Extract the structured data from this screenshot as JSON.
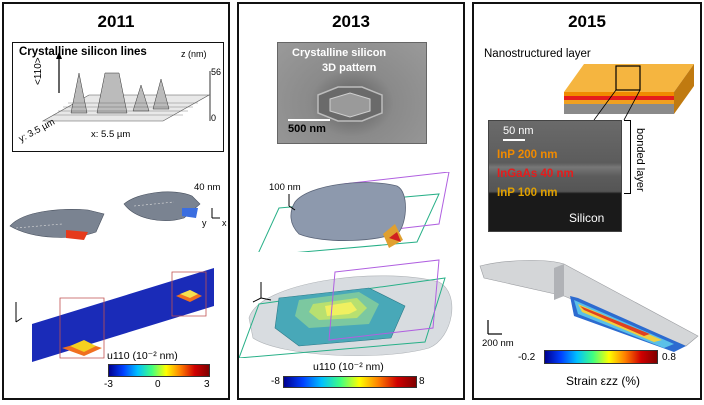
{
  "panels": [
    {
      "year": "2011",
      "inset_title": "Crystalline silicon lines",
      "z_axis_label": "z (nm)",
      "z_max": "56",
      "z_min": "0",
      "direction_label": "<110>",
      "y_label": "y: 3.5 µm",
      "x_label": "x: 5.5 µm",
      "scale_label": "40 nm",
      "axis_y": "y",
      "axis_x": "x",
      "colorbar_label": "u110 (10⁻² nm)",
      "cb_min": "-3",
      "cb_mid": "0",
      "cb_max": "3"
    },
    {
      "year": "2013",
      "sem_text_1": "Crystalline silicon",
      "sem_text_2": "3D pattern",
      "sem_scale": "500 nm",
      "scale_label": "100 nm",
      "colorbar_label": "u110 (10⁻² nm)",
      "cb_min": "-8",
      "cb_max": "8"
    },
    {
      "year": "2015",
      "layer_label": "Nanostructured layer",
      "tem_scale": "50 nm",
      "layers": [
        {
          "label": "InP 200 nm",
          "color": "#f08a00"
        },
        {
          "label": "InGaAs  40 nm",
          "color": "#e51c1c"
        },
        {
          "label": "InP 100 nm",
          "color": "#e0a000"
        }
      ],
      "silicon_label": "Silicon",
      "bonded_label": "bonded layer",
      "scale_label": "200 nm",
      "colorbar_label": "Strain εzz (%)",
      "cb_min": "-0.2",
      "cb_max": "0.8"
    }
  ]
}
